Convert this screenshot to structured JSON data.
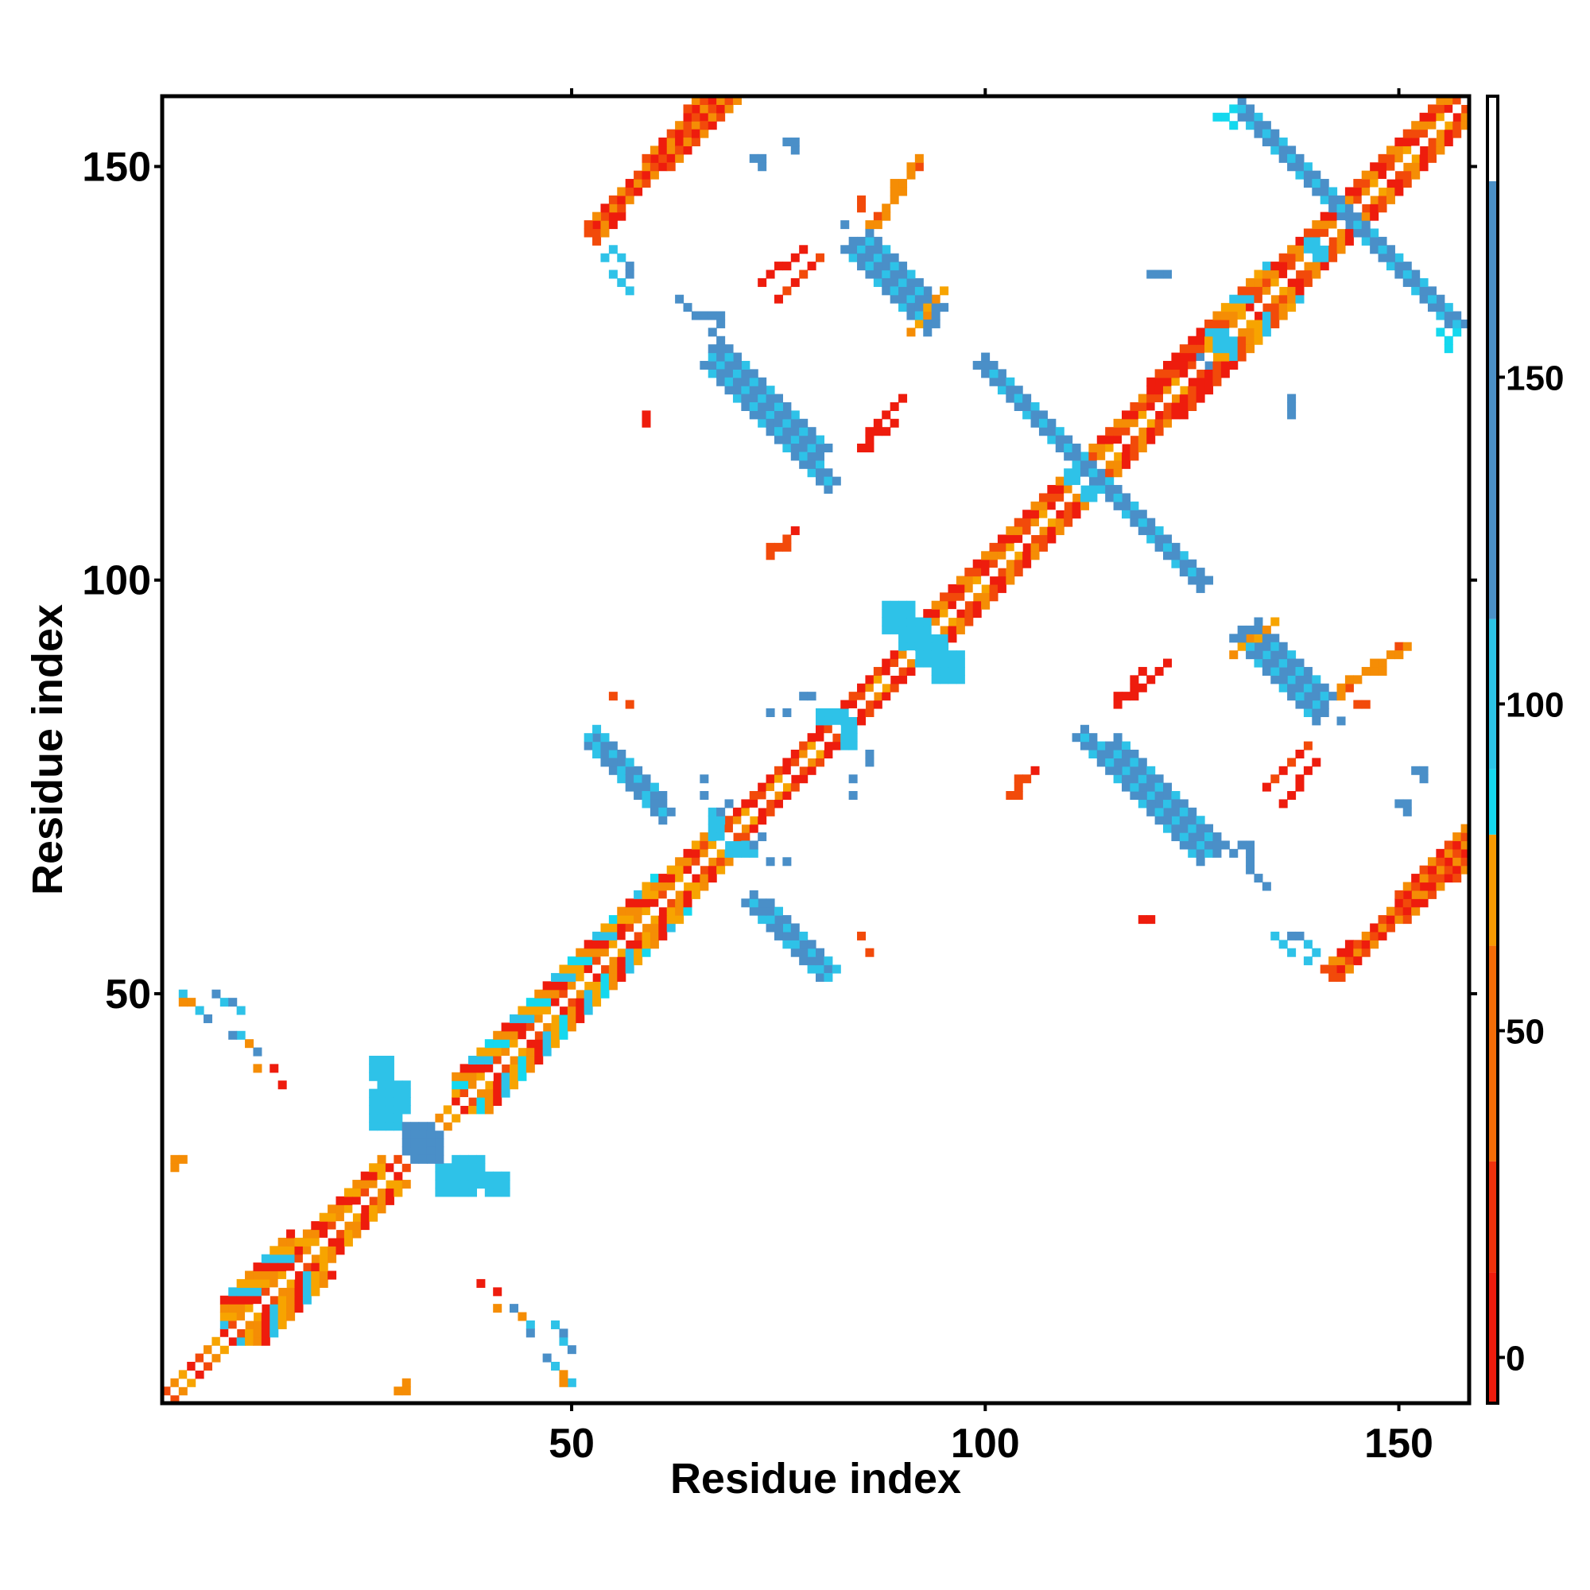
{
  "chart_data": {
    "type": "heatmap",
    "title": "",
    "xlabel": "Residue index",
    "ylabel": "Residue index",
    "xlim": [
      0.5,
      158.5
    ],
    "ylim": [
      0.5,
      158.5
    ],
    "x_ticks": [
      50,
      100,
      150
    ],
    "y_ticks": [
      50,
      100,
      150
    ],
    "colorbar": {
      "ticks": [
        0,
        50,
        100,
        150
      ],
      "range": [
        -7,
        193
      ],
      "bands": [
        {
          "from": -7,
          "to": 13,
          "color": "#ee1c0d"
        },
        {
          "from": 13,
          "to": 30,
          "color": "#f0320c"
        },
        {
          "from": 30,
          "to": 63,
          "color": "#f36c07"
        },
        {
          "from": 63,
          "to": 80,
          "color": "#f79a02"
        },
        {
          "from": 80,
          "to": 90,
          "color": "#15d8ee"
        },
        {
          "from": 90,
          "to": 113,
          "color": "#2cc4e6"
        },
        {
          "from": 113,
          "to": 180,
          "color": "#4b90c7"
        },
        {
          "from": 180,
          "to": 193,
          "color": "#ffffff"
        }
      ]
    },
    "palette": {
      "red": "#ee1c0d",
      "orange_red": "#f24a0a",
      "orange": "#f58d05",
      "amber": "#f7a400",
      "cyan": "#15d8ee",
      "sky": "#2ec2e8",
      "steel": "#4a8fc8"
    },
    "diagonal": {
      "from": 1,
      "to": 158,
      "colors": [
        "red",
        "orange_red",
        "orange",
        "amber"
      ]
    },
    "helix_bands": [
      {
        "from": 8,
        "to": 16,
        "half_width": 5,
        "colors": [
          "orange",
          "red",
          "sky",
          "amber"
        ]
      },
      {
        "from": 17,
        "to": 27,
        "half_width": 3,
        "colors": [
          "orange",
          "red",
          "amber"
        ]
      },
      {
        "from": 36,
        "to": 60,
        "half_width": 4,
        "colors": [
          "orange",
          "red",
          "sky",
          "amber",
          "cyan"
        ]
      },
      {
        "from": 56,
        "to": 66,
        "half_width": 3,
        "colors": [
          "orange",
          "red",
          "amber"
        ]
      },
      {
        "from": 66,
        "to": 92,
        "half_width": 2,
        "colors": [
          "red",
          "red",
          "orange_red"
        ]
      },
      {
        "from": 92,
        "to": 112,
        "half_width": 3,
        "colors": [
          "red",
          "orange",
          "orange_red"
        ]
      },
      {
        "from": 112,
        "to": 127,
        "half_width": 3,
        "colors": [
          "red",
          "orange_red",
          "orange"
        ]
      },
      {
        "from": 120,
        "to": 126,
        "half_width": 4,
        "colors": [
          "red",
          "red",
          "orange_red"
        ]
      },
      {
        "from": 127,
        "to": 134,
        "half_width": 4,
        "colors": [
          "orange",
          "amber",
          "sky",
          "orange_red"
        ]
      },
      {
        "from": 134,
        "to": 158,
        "half_width": 3,
        "colors": [
          "red",
          "orange_red",
          "orange"
        ]
      }
    ],
    "cross_strands": [
      {
        "x1": 53,
        "y1": 80,
        "x2": 61,
        "y2": 72,
        "half_width": 1,
        "colors": [
          "steel",
          "steel",
          "sky"
        ]
      },
      {
        "x1": 74,
        "y1": 60,
        "x2": 81,
        "y2": 53,
        "half_width": 1,
        "colors": [
          "steel",
          "steel",
          "sky"
        ]
      },
      {
        "x1": 67,
        "y1": 126,
        "x2": 81,
        "y2": 112,
        "half_width": 1,
        "colors": [
          "steel",
          "steel",
          "sky"
        ]
      },
      {
        "x1": 84,
        "y1": 140,
        "x2": 93,
        "y2": 131,
        "half_width": 1,
        "colors": [
          "steel",
          "steel",
          "sky"
        ]
      },
      {
        "x1": 102,
        "y1": 124,
        "x2": 126,
        "y2": 100,
        "half_width": 1,
        "colors": [
          "steel",
          "steel",
          "sky"
        ]
      },
      {
        "x1": 116,
        "y1": 80,
        "x2": 128,
        "y2": 68,
        "half_width": 1,
        "colors": [
          "steel",
          "steel",
          "sky"
        ]
      },
      {
        "x1": 131,
        "y1": 157,
        "x2": 157,
        "y2": 131,
        "half_width": 1,
        "colors": [
          "steel",
          "steel",
          "sky"
        ]
      },
      {
        "x1": 133,
        "y1": 94,
        "x2": 141,
        "y2": 86,
        "half_width": 1,
        "colors": [
          "steel",
          "steel",
          "sky"
        ]
      },
      {
        "x1": 7,
        "y1": 50,
        "x2": 10,
        "y2": 48,
        "half_width": 0,
        "colors": [
          "steel",
          "sky"
        ]
      },
      {
        "x1": 47,
        "y1": 6,
        "x2": 50,
        "y2": 3,
        "half_width": 0,
        "colors": [
          "steel",
          "sky"
        ]
      }
    ],
    "parallel_strands": [
      {
        "x1": 53,
        "y1": 142,
        "x2": 67,
        "y2": 159,
        "half_width": 1,
        "colors": [
          "red",
          "orange_red",
          "orange"
        ]
      },
      {
        "x1": 143,
        "y1": 53,
        "x2": 158,
        "y2": 69,
        "half_width": 1,
        "colors": [
          "red",
          "orange_red",
          "orange"
        ]
      },
      {
        "x1": 86,
        "y1": 143,
        "x2": 92,
        "y2": 150,
        "half_width": 0,
        "colors": [
          "orange",
          "orange_red"
        ]
      },
      {
        "x1": 73,
        "y1": 136,
        "x2": 78,
        "y2": 140,
        "half_width": 0,
        "colors": [
          "red"
        ]
      },
      {
        "x1": 85,
        "y1": 116,
        "x2": 89,
        "y2": 119,
        "half_width": 0,
        "colors": [
          "red"
        ]
      },
      {
        "x1": 74,
        "y1": 103,
        "x2": 76,
        "y2": 105,
        "half_width": 0,
        "colors": [
          "orange_red"
        ]
      },
      {
        "x1": 118,
        "y1": 86,
        "x2": 122,
        "y2": 90,
        "half_width": 0,
        "colors": [
          "red"
        ]
      },
      {
        "x1": 143,
        "y1": 87,
        "x2": 151,
        "y2": 92,
        "half_width": 0,
        "colors": [
          "orange"
        ]
      },
      {
        "x1": 134,
        "y1": 75,
        "x2": 139,
        "y2": 80,
        "half_width": 0,
        "colors": [
          "red",
          "orange_red"
        ]
      },
      {
        "x1": 130,
        "y1": 91,
        "x2": 135,
        "y2": 95,
        "half_width": 0,
        "colors": [
          "orange",
          "amber"
        ]
      }
    ],
    "blobs": [
      {
        "cx": 29,
        "cy": 38,
        "w": 4,
        "h": 4,
        "color": "sky"
      },
      {
        "cx": 36,
        "cy": 28,
        "w": 5,
        "h": 4,
        "color": "sky"
      },
      {
        "cx": 33,
        "cy": 32,
        "w": 4,
        "h": 4,
        "color": "steel"
      },
      {
        "cx": 27,
        "cy": 41,
        "w": 3,
        "h": 3,
        "color": "sky"
      },
      {
        "cx": 90,
        "cy": 96,
        "w": 4,
        "h": 4,
        "color": "sky"
      },
      {
        "cx": 94,
        "cy": 92,
        "w": 4,
        "h": 4,
        "color": "sky"
      },
      {
        "cx": 68,
        "cy": 70,
        "w": 2,
        "h": 3,
        "color": "sky"
      },
      {
        "cx": 71,
        "cy": 68,
        "w": 3,
        "h": 2,
        "color": "sky"
      },
      {
        "cx": 111,
        "cy": 113,
        "w": 2,
        "h": 2,
        "color": "sky"
      },
      {
        "cx": 140,
        "cy": 141,
        "w": 2,
        "h": 2,
        "color": "sky"
      },
      {
        "cx": 129,
        "cy": 129,
        "w": 3,
        "h": 2,
        "color": "sky"
      },
      {
        "cx": 82,
        "cy": 84,
        "w": 3,
        "h": 2,
        "color": "sky"
      },
      {
        "cx": 84,
        "cy": 81,
        "w": 2,
        "h": 3,
        "color": "sky"
      }
    ],
    "scattered_contacts": [
      {
        "x": 59,
        "y": 120,
        "color": "red"
      },
      {
        "x": 86,
        "y": 116,
        "color": "red"
      },
      {
        "x": 74,
        "y": 104,
        "color": "orange_red"
      },
      {
        "x": 57,
        "y": 85,
        "color": "orange_red"
      },
      {
        "x": 119,
        "y": 59,
        "color": "red"
      },
      {
        "x": 86,
        "y": 55,
        "color": "orange_red"
      },
      {
        "x": 104,
        "y": 76,
        "color": "orange_red"
      },
      {
        "x": 106,
        "y": 77,
        "color": "red"
      },
      {
        "x": 145,
        "y": 85,
        "color": "orange_red"
      },
      {
        "x": 39,
        "y": 15,
        "color": "red"
      },
      {
        "x": 41,
        "y": 12,
        "color": "orange"
      },
      {
        "x": 43,
        "y": 12,
        "color": "steel"
      },
      {
        "x": 44,
        "y": 11,
        "color": "steel"
      },
      {
        "x": 29,
        "y": 2,
        "color": "orange"
      },
      {
        "x": 30,
        "y": 2,
        "color": "orange"
      },
      {
        "x": 14,
        "y": 41,
        "color": "red"
      },
      {
        "x": 11,
        "y": 44,
        "color": "orange"
      },
      {
        "x": 10,
        "y": 45,
        "color": "sky"
      },
      {
        "x": 9,
        "y": 45,
        "color": "steel"
      },
      {
        "x": 3,
        "y": 49,
        "color": "orange"
      },
      {
        "x": 4,
        "y": 49,
        "color": "orange"
      },
      {
        "x": 3,
        "y": 30,
        "color": "orange"
      },
      {
        "x": 74,
        "y": 84,
        "color": "steel"
      },
      {
        "x": 76,
        "y": 84,
        "color": "steel"
      },
      {
        "x": 86,
        "y": 78,
        "color": "steel"
      },
      {
        "x": 86,
        "y": 79,
        "color": "steel"
      },
      {
        "x": 89,
        "y": 148,
        "color": "orange"
      },
      {
        "x": 85,
        "y": 146,
        "color": "orange_red"
      },
      {
        "x": 86,
        "y": 143,
        "color": "orange"
      },
      {
        "x": 72,
        "y": 151,
        "color": "steel"
      },
      {
        "x": 73,
        "y": 151,
        "color": "steel"
      },
      {
        "x": 73,
        "y": 150,
        "color": "steel"
      },
      {
        "x": 63,
        "y": 134,
        "color": "steel"
      },
      {
        "x": 65,
        "y": 132,
        "color": "steel"
      },
      {
        "x": 66,
        "y": 132,
        "color": "steel"
      },
      {
        "x": 68,
        "y": 132,
        "color": "steel"
      },
      {
        "x": 68,
        "y": 131,
        "color": "steel"
      },
      {
        "x": 55,
        "y": 140,
        "color": "sky"
      },
      {
        "x": 56,
        "y": 139,
        "color": "sky"
      },
      {
        "x": 57,
        "y": 138,
        "color": "steel"
      },
      {
        "x": 57,
        "y": 137,
        "color": "steel"
      },
      {
        "x": 120,
        "y": 137,
        "color": "steel"
      },
      {
        "x": 122,
        "y": 137,
        "color": "steel"
      },
      {
        "x": 126,
        "y": 127,
        "color": "steel"
      },
      {
        "x": 137,
        "y": 122,
        "color": "steel"
      },
      {
        "x": 137,
        "y": 121,
        "color": "steel"
      },
      {
        "x": 152,
        "y": 77,
        "color": "steel"
      },
      {
        "x": 153,
        "y": 77,
        "color": "steel"
      },
      {
        "x": 153,
        "y": 76,
        "color": "steel"
      },
      {
        "x": 130,
        "y": 67,
        "color": "steel"
      },
      {
        "x": 132,
        "y": 67,
        "color": "steel"
      },
      {
        "x": 133,
        "y": 64,
        "color": "steel"
      },
      {
        "x": 139,
        "y": 54,
        "color": "sky"
      },
      {
        "x": 137,
        "y": 55,
        "color": "sky"
      },
      {
        "x": 136,
        "y": 56,
        "color": "sky"
      },
      {
        "x": 135,
        "y": 57,
        "color": "sky"
      },
      {
        "x": 143,
        "y": 83,
        "color": "steel"
      },
      {
        "x": 127,
        "y": 67,
        "color": "sky"
      },
      {
        "x": 76,
        "y": 66,
        "color": "steel"
      },
      {
        "x": 74,
        "y": 66,
        "color": "steel"
      },
      {
        "x": 69,
        "y": 73,
        "color": "steel"
      },
      {
        "x": 68,
        "y": 72,
        "color": "steel"
      },
      {
        "x": 130,
        "y": 157,
        "color": "cyan"
      },
      {
        "x": 129,
        "y": 156,
        "color": "cyan"
      },
      {
        "x": 128,
        "y": 156,
        "color": "cyan"
      },
      {
        "x": 155,
        "y": 130,
        "color": "cyan"
      },
      {
        "x": 156,
        "y": 129,
        "color": "cyan"
      },
      {
        "x": 156,
        "y": 128,
        "color": "cyan"
      }
    ]
  }
}
